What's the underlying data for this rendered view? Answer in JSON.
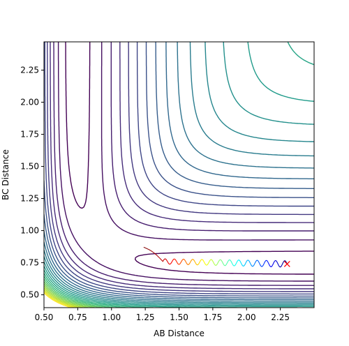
{
  "chart_data": {
    "type": "contour",
    "title": "",
    "xlabel": "AB Distance",
    "ylabel": "BC Distance",
    "xlim": [
      0.5,
      2.5
    ],
    "ylim": [
      0.4,
      2.47
    ],
    "x_ticks": [
      "0.50",
      "0.75",
      "1.00",
      "1.25",
      "1.50",
      "1.75",
      "2.00",
      "2.25"
    ],
    "y_ticks": [
      "0.50",
      "0.75",
      "1.00",
      "1.25",
      "1.50",
      "1.75",
      "2.00",
      "2.25"
    ],
    "grid": false,
    "legend": "none",
    "colormap": "viridis",
    "contour_levels": 25,
    "surface": {
      "form": "LEPS-like H3 potential surface",
      "bond_min": 0.74,
      "barrier_near": [
        0.93,
        0.93
      ]
    },
    "trajectory": {
      "colormap": "jet",
      "start": [
        1.24,
        0.87
      ],
      "end": [
        2.3,
        0.74
      ],
      "end_marker": "x",
      "end_color": "#ff0000"
    },
    "colors": {
      "axes_edge": "#000000",
      "end_marker": "#ff0000"
    }
  }
}
